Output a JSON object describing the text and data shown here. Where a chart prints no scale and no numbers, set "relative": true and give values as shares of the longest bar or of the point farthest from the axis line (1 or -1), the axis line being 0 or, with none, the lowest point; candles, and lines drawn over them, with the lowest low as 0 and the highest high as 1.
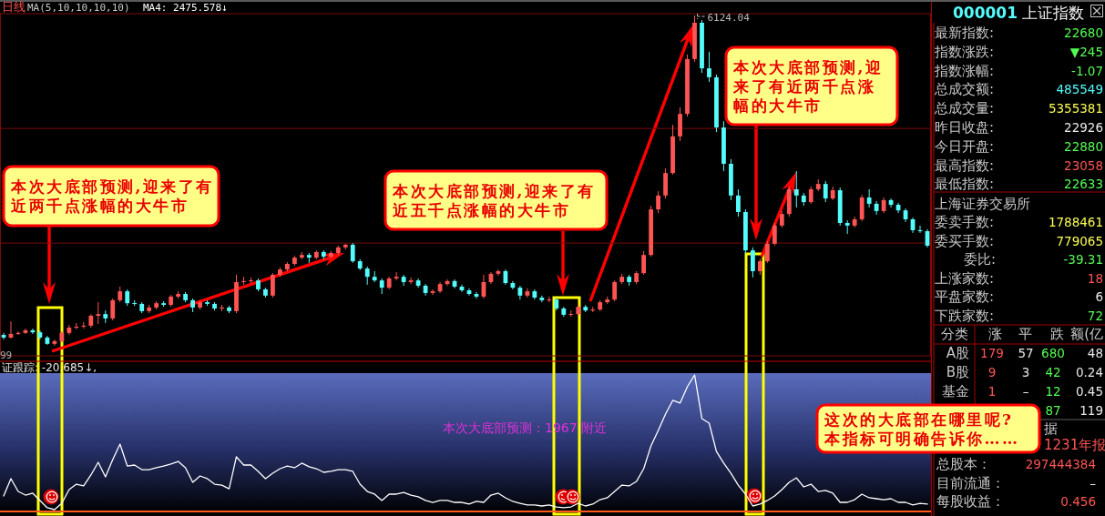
{
  "chart_data": [
    {
      "type": "candlestick",
      "title": "日线",
      "subtitle": "MA(5,10,10,10,10)",
      "relative": true,
      "ref_lines": [
        {
          "axis": "y",
          "value": 0.658,
          "color": "#7a0a0a"
        },
        {
          "axis": "y",
          "value": 0.311,
          "color": "#7a0a0a"
        }
      ],
      "categories": [
        null,
        null,
        null,
        null,
        null,
        null,
        null,
        null,
        null,
        null,
        null,
        null,
        null,
        null,
        null,
        null,
        null,
        null,
        null,
        null,
        null,
        null,
        null,
        null,
        null,
        null,
        null,
        null,
        null,
        null,
        null,
        null,
        null,
        null,
        null,
        null,
        null,
        null,
        null,
        null,
        null,
        null,
        null,
        null,
        null,
        null,
        null,
        null,
        null,
        null,
        null,
        null,
        null,
        null,
        null,
        null,
        null,
        null,
        null,
        null,
        null,
        null,
        null,
        null,
        null,
        null,
        null,
        null,
        null,
        null,
        null,
        null,
        null,
        null,
        null,
        null,
        null,
        null,
        null,
        null,
        null,
        null,
        null,
        null,
        null,
        null,
        null,
        null,
        null,
        null,
        null,
        null,
        null,
        null,
        null,
        null,
        null,
        null,
        null,
        null,
        null,
        null,
        null,
        null,
        null,
        null,
        null,
        null,
        null,
        null,
        null,
        null,
        null,
        null,
        null,
        null,
        null,
        null,
        null,
        null,
        null,
        null,
        null,
        null,
        null,
        null,
        null,
        null
      ],
      "ohlc": [
        [
          0.033,
          0.039,
          0.019,
          0.025
        ],
        [
          0.025,
          0.074,
          0.022,
          0.036
        ],
        [
          0.036,
          0.044,
          0.033,
          0.039
        ],
        [
          0.039,
          0.052,
          0.036,
          0.047
        ],
        [
          0.047,
          0.052,
          0.036,
          0.041
        ],
        [
          0.041,
          0.047,
          0.019,
          0.025
        ],
        [
          0.025,
          0.03,
          0.003,
          0.006
        ],
        [
          0.006,
          0.019,
          0,
          0.014
        ],
        [
          0.014,
          0.044,
          0.011,
          0.039
        ],
        [
          0.039,
          0.063,
          0.033,
          0.055
        ],
        [
          0.055,
          0.069,
          0.05,
          0.058
        ],
        [
          0.058,
          0.072,
          0.052,
          0.061
        ],
        [
          0.061,
          0.096,
          0.055,
          0.091
        ],
        [
          0.091,
          0.132,
          0.066,
          0.096
        ],
        [
          0.096,
          0.107,
          0.069,
          0.083
        ],
        [
          0.083,
          0.143,
          0.077,
          0.138
        ],
        [
          0.138,
          0.179,
          0.132,
          0.165
        ],
        [
          0.165,
          0.171,
          0.121,
          0.129
        ],
        [
          0.129,
          0.138,
          0.121,
          0.127
        ],
        [
          0.127,
          0.132,
          0.099,
          0.105
        ],
        [
          0.105,
          0.124,
          0.099,
          0.116
        ],
        [
          0.116,
          0.135,
          0.11,
          0.129
        ],
        [
          0.129,
          0.135,
          0.118,
          0.124
        ],
        [
          0.124,
          0.154,
          0.118,
          0.149
        ],
        [
          0.149,
          0.165,
          0.143,
          0.157
        ],
        [
          0.157,
          0.163,
          0.132,
          0.138
        ],
        [
          0.138,
          0.143,
          0.102,
          0.116
        ],
        [
          0.116,
          0.138,
          0.11,
          0.132
        ],
        [
          0.132,
          0.138,
          0.121,
          0.127
        ],
        [
          0.127,
          0.132,
          0.107,
          0.113
        ],
        [
          0.113,
          0.124,
          0.105,
          0.116
        ],
        [
          0.116,
          0.121,
          0.099,
          0.105
        ],
        [
          0.105,
          0.215,
          0.099,
          0.193
        ],
        [
          0.193,
          0.209,
          0.185,
          0.196
        ],
        [
          0.196,
          0.207,
          0.19,
          0.198
        ],
        [
          0.198,
          0.204,
          0.165,
          0.171
        ],
        [
          0.171,
          0.176,
          0.146,
          0.152
        ],
        [
          0.152,
          0.22,
          0.146,
          0.215
        ],
        [
          0.215,
          0.237,
          0.209,
          0.231
        ],
        [
          0.231,
          0.253,
          0.226,
          0.248
        ],
        [
          0.248,
          0.273,
          0.242,
          0.267
        ],
        [
          0.267,
          0.284,
          0.262,
          0.275
        ],
        [
          0.275,
          0.281,
          0.251,
          0.267
        ],
        [
          0.267,
          0.289,
          0.262,
          0.284
        ],
        [
          0.284,
          0.289,
          0.262,
          0.27
        ],
        [
          0.27,
          0.287,
          0.264,
          0.281
        ],
        [
          0.281,
          0.303,
          0.275,
          0.298
        ],
        [
          0.298,
          0.309,
          0.292,
          0.306
        ],
        [
          0.306,
          0.311,
          0.251,
          0.256
        ],
        [
          0.256,
          0.262,
          0.229,
          0.234
        ],
        [
          0.234,
          0.24,
          0.185,
          0.209
        ],
        [
          0.209,
          0.226,
          0.193,
          0.198
        ],
        [
          0.198,
          0.204,
          0.157,
          0.176
        ],
        [
          0.176,
          0.209,
          0.171,
          0.204
        ],
        [
          0.204,
          0.223,
          0.198,
          0.209
        ],
        [
          0.209,
          0.215,
          0.182,
          0.193
        ],
        [
          0.193,
          0.207,
          0.187,
          0.198
        ],
        [
          0.198,
          0.204,
          0.176,
          0.182
        ],
        [
          0.182,
          0.187,
          0.152,
          0.16
        ],
        [
          0.16,
          0.171,
          0.154,
          0.165
        ],
        [
          0.165,
          0.193,
          0.16,
          0.187
        ],
        [
          0.187,
          0.201,
          0.182,
          0.196
        ],
        [
          0.196,
          0.201,
          0.174,
          0.179
        ],
        [
          0.179,
          0.185,
          0.163,
          0.168
        ],
        [
          0.168,
          0.174,
          0.152,
          0.157
        ],
        [
          0.157,
          0.163,
          0.143,
          0.149
        ],
        [
          0.149,
          0.215,
          0.143,
          0.193
        ],
        [
          0.193,
          0.223,
          0.187,
          0.218
        ],
        [
          0.218,
          0.231,
          0.212,
          0.226
        ],
        [
          0.226,
          0.231,
          0.185,
          0.19
        ],
        [
          0.19,
          0.196,
          0.171,
          0.176
        ],
        [
          0.176,
          0.182,
          0.14,
          0.152
        ],
        [
          0.152,
          0.174,
          0.146,
          0.165
        ],
        [
          0.165,
          0.171,
          0.14,
          0.146
        ],
        [
          0.146,
          0.152,
          0.132,
          0.138
        ],
        [
          0.138,
          0.149,
          0.132,
          0.14
        ],
        [
          0.14,
          0.146,
          0.107,
          0.113
        ],
        [
          0.113,
          0.118,
          0.088,
          0.094
        ],
        [
          0.094,
          0.107,
          0.088,
          0.096
        ],
        [
          0.096,
          0.127,
          0.091,
          0.118
        ],
        [
          0.118,
          0.124,
          0.102,
          0.107
        ],
        [
          0.107,
          0.118,
          0.102,
          0.11
        ],
        [
          0.11,
          0.138,
          0.105,
          0.132
        ],
        [
          0.132,
          0.149,
          0.127,
          0.14
        ],
        [
          0.14,
          0.198,
          0.135,
          0.193
        ],
        [
          0.193,
          0.218,
          0.187,
          0.209
        ],
        [
          0.209,
          0.215,
          0.182,
          0.193
        ],
        [
          0.193,
          0.226,
          0.187,
          0.22
        ],
        [
          0.22,
          0.287,
          0.215,
          0.275
        ],
        [
          0.275,
          0.424,
          0.27,
          0.413
        ],
        [
          0.413,
          0.468,
          0.402,
          0.455
        ],
        [
          0.455,
          0.537,
          0.446,
          0.523
        ],
        [
          0.523,
          0.669,
          0.518,
          0.634
        ],
        [
          0.634,
          0.722,
          0.62,
          0.702
        ],
        [
          0.702,
          0.882,
          0.694,
          0.868
        ],
        [
          0.868,
          1,
          0.86,
          0.978
        ],
        [
          0.978,
          0.986,
          0.826,
          0.84
        ],
        [
          0.84,
          0.89,
          0.799,
          0.813
        ],
        [
          0.813,
          0.821,
          0.647,
          0.661
        ],
        [
          0.661,
          0.68,
          0.529,
          0.551
        ],
        [
          0.551,
          0.565,
          0.441,
          0.455
        ],
        [
          0.455,
          0.474,
          0.391,
          0.405
        ],
        [
          0.405,
          0.413,
          0.278,
          0.289
        ],
        [
          0.289,
          0.298,
          0.207,
          0.226
        ],
        [
          0.226,
          0.264,
          0.215,
          0.256
        ],
        [
          0.256,
          0.317,
          0.251,
          0.309
        ],
        [
          0.309,
          0.372,
          0.303,
          0.364
        ],
        [
          0.364,
          0.408,
          0.358,
          0.399
        ],
        [
          0.399,
          0.482,
          0.391,
          0.474
        ],
        [
          0.474,
          0.529,
          0.419,
          0.455
        ],
        [
          0.455,
          0.463,
          0.424,
          0.435
        ],
        [
          0.435,
          0.482,
          0.43,
          0.474
        ],
        [
          0.474,
          0.504,
          0.468,
          0.49
        ],
        [
          0.49,
          0.499,
          0.435,
          0.446
        ],
        [
          0.446,
          0.482,
          0.441,
          0.471
        ],
        [
          0.471,
          0.479,
          0.364,
          0.372
        ],
        [
          0.372,
          0.38,
          0.339,
          0.364
        ],
        [
          0.364,
          0.391,
          0.358,
          0.383
        ],
        [
          0.383,
          0.457,
          0.377,
          0.449
        ],
        [
          0.449,
          0.474,
          0.419,
          0.43
        ],
        [
          0.43,
          0.438,
          0.397,
          0.408
        ],
        [
          0.408,
          0.449,
          0.402,
          0.441
        ],
        [
          0.441,
          0.446,
          0.419,
          0.427
        ],
        [
          0.427,
          0.433,
          0.402,
          0.41
        ],
        [
          0.41,
          0.416,
          0.375,
          0.383
        ],
        [
          0.383,
          0.388,
          0.342,
          0.35
        ],
        [
          0.35,
          0.364,
          0.342,
          0.347
        ],
        [
          0.347,
          0.353,
          0.298,
          0.303
        ]
      ],
      "colors": [
        "#54fcfc",
        "#ff5454",
        "#ff5454",
        "#ff5454",
        "#54fcfc",
        "#54fcfc",
        "#54fcfc",
        "#ff5454",
        "#ff5454",
        "#ff5454",
        "#ff5454",
        "#ff5454",
        "#ff5454",
        "#ff5454",
        "#54fcfc",
        "#ff5454",
        "#ff5454",
        "#54fcfc",
        "#54fcfc",
        "#54fcfc",
        "#ff5454",
        "#ff5454",
        "#54fcfc",
        "#ff5454",
        "#ff5454",
        "#54fcfc",
        "#54fcfc",
        "#ff5454",
        "#54fcfc",
        "#54fcfc",
        "#ff5454",
        "#54fcfc",
        "#ff5454",
        "#ff5454",
        "#ff5454",
        "#54fcfc",
        "#54fcfc",
        "#ff5454",
        "#ff5454",
        "#ff5454",
        "#ff5454",
        "#ff5454",
        "#54fcfc",
        "#ff5454",
        "#54fcfc",
        "#ff5454",
        "#ff5454",
        "#ff5454",
        "#54fcfc",
        "#54fcfc",
        "#54fcfc",
        "#54fcfc",
        "#54fcfc",
        "#ff5454",
        "#ff5454",
        "#54fcfc",
        "#ff5454",
        "#54fcfc",
        "#54fcfc",
        "#ff5454",
        "#ff5454",
        "#ff5454",
        "#54fcfc",
        "#54fcfc",
        "#54fcfc",
        "#54fcfc",
        "#ff5454",
        "#ff5454",
        "#ff5454",
        "#54fcfc",
        "#54fcfc",
        "#54fcfc",
        "#ff5454",
        "#54fcfc",
        "#54fcfc",
        "#ff5454",
        "#54fcfc",
        "#54fcfc",
        "#ff5454",
        "#ff5454",
        "#54fcfc",
        "#ff5454",
        "#ff5454",
        "#ff5454",
        "#ff5454",
        "#ff5454",
        "#54fcfc",
        "#ff5454",
        "#ff5454",
        "#ff5454",
        "#ff5454",
        "#ff5454",
        "#ff5454",
        "#ff5454",
        "#ff5454",
        "#ff5454",
        "#54fcfc",
        "#54fcfc",
        "#54fcfc",
        "#54fcfc",
        "#54fcfc",
        "#54fcfc",
        "#54fcfc",
        "#54fcfc",
        "#ff5454",
        "#ff5454",
        "#ff5454",
        "#ff5454",
        "#ff5454",
        "#54fcfc",
        "#54fcfc",
        "#ff5454",
        "#ff5454",
        "#54fcfc",
        "#ff5454",
        "#54fcfc",
        "#54fcfc",
        "#ff5454",
        "#ff5454",
        "#54fcfc",
        "#54fcfc",
        "#ff5454",
        "#54fcfc",
        "#54fcfc",
        "#54fcfc",
        "#54fcfc",
        "#54fcfc",
        "#54fcfc"
      ],
      "annotations": [
        "MA4: 2475.578↓",
        "本次大底部预测,迎来了有近两千点涨幅的大牛市",
        "本次大底部预测,迎来了有近五千点涨幅的大牛市",
        "本次大底部预测,迎来了有近两千点涨幅的大牛市",
        "6124.04",
        "99"
      ]
    },
    {
      "type": "line",
      "title": "证跟踪: -20.685↓,",
      "relative": true,
      "categories": [
        null,
        null,
        null,
        null,
        null,
        null,
        null,
        null,
        null,
        null,
        null,
        null,
        null,
        null,
        null,
        null,
        null,
        null,
        null,
        null,
        null,
        null,
        null,
        null,
        null,
        null,
        null,
        null,
        null,
        null,
        null,
        null,
        null,
        null,
        null,
        null,
        null,
        null,
        null,
        null,
        null,
        null,
        null,
        null,
        null,
        null,
        null,
        null,
        null,
        null,
        null,
        null,
        null,
        null,
        null,
        null,
        null,
        null,
        null,
        null,
        null,
        null,
        null,
        null,
        null,
        null,
        null,
        null,
        null,
        null,
        null,
        null,
        null,
        null,
        null,
        null,
        null,
        null,
        null,
        null,
        null,
        null,
        null,
        null,
        null,
        null,
        null,
        null,
        null,
        null,
        null,
        null,
        null,
        null,
        null,
        null,
        null,
        null,
        null,
        null,
        null,
        null,
        null,
        null,
        null,
        null,
        null,
        null,
        null,
        null,
        null,
        null,
        null,
        null,
        null,
        null,
        null,
        null,
        null,
        null,
        null,
        null,
        null,
        null,
        null,
        null,
        null,
        null
      ],
      "series": [
        {
          "color": "#ffffff",
          "values": [
            0.101,
            0.23,
            0.135,
            0.108,
            0.122,
            0.068,
            0.014,
            0,
            0.047,
            0.149,
            0.189,
            0.176,
            0.257,
            0.351,
            0.243,
            0.372,
            0.486,
            0.324,
            0.331,
            0.297,
            0.297,
            0.311,
            0.324,
            0.338,
            0.358,
            0.311,
            0.203,
            0.25,
            0.23,
            0.189,
            0.182,
            0.155,
            0.392,
            0.331,
            0.331,
            0.284,
            0.23,
            0.27,
            0.304,
            0.324,
            0.311,
            0.345,
            0.318,
            0.304,
            0.277,
            0.284,
            0.297,
            0.297,
            0.284,
            0.189,
            0.135,
            0.115,
            0.068,
            0.115,
            0.115,
            0.128,
            0.108,
            0.095,
            0.068,
            0.054,
            0.068,
            0.068,
            0.054,
            0.054,
            0.041,
            0.061,
            0.054,
            0.108,
            0.122,
            0.088,
            0.061,
            0.047,
            0.034,
            0.034,
            0.027,
            0.034,
            0.02,
            0.014,
            0.02,
            0.047,
            0.027,
            0.041,
            0.074,
            0.088,
            0.135,
            0.182,
            0.176,
            0.209,
            0.304,
            0.473,
            0.588,
            0.709,
            0.811,
            0.791,
            0.912,
            1,
            0.676,
            0.642,
            0.432,
            0.345,
            0.27,
            0.182,
            0.115,
            0.027,
            0.041,
            0.068,
            0.101,
            0.149,
            0.203,
            0.236,
            0.169,
            0.189,
            0.135,
            0.142,
            0.122,
            0.054,
            0.054,
            0.074,
            0.115,
            0.088,
            0.081,
            0.074,
            0.081,
            0.054,
            0.054,
            0.034,
            0.047,
            0.041
          ]
        }
      ],
      "annotations": [
        "本次大底部预测：1967 附近",
        "这次的大底部在哪里呢?本指标可明确告诉你……"
      ]
    },
    {
      "type": "other",
      "title": "000001 上证指数",
      "annotations": [
        "最新指数:",
        "22680",
        "指数涨跌:",
        "▼245",
        "指数涨幅:",
        "-1.07",
        "总成交额:",
        "485549",
        "总成交量:",
        "5355381",
        "昨日收盘:",
        "22926",
        "今日开盘:",
        "22880",
        "最高指数:",
        "23058",
        "最低指数:",
        "22633",
        "上海证券交易所",
        "委卖手数:",
        "1788461",
        "委买手数:",
        "779065",
        "委比:",
        "-39.31",
        "上涨家数:",
        "18",
        "平盘家数:",
        "6",
        "下跌家数:",
        "72",
        "分类",
        "涨",
        "平",
        "跌",
        "额(亿",
        "A股",
        "179",
        "57",
        "680",
        "48",
        "B股",
        "9",
        "3",
        "42",
        "0.24",
        "基金",
        "1",
        "–",
        "12",
        "0.45",
        "87",
        "119",
        "据",
        "1231年报",
        "总股本：",
        "297444384",
        "目前流通：",
        "–",
        "每股收益：",
        "0.456"
      ]
    }
  ]
}
